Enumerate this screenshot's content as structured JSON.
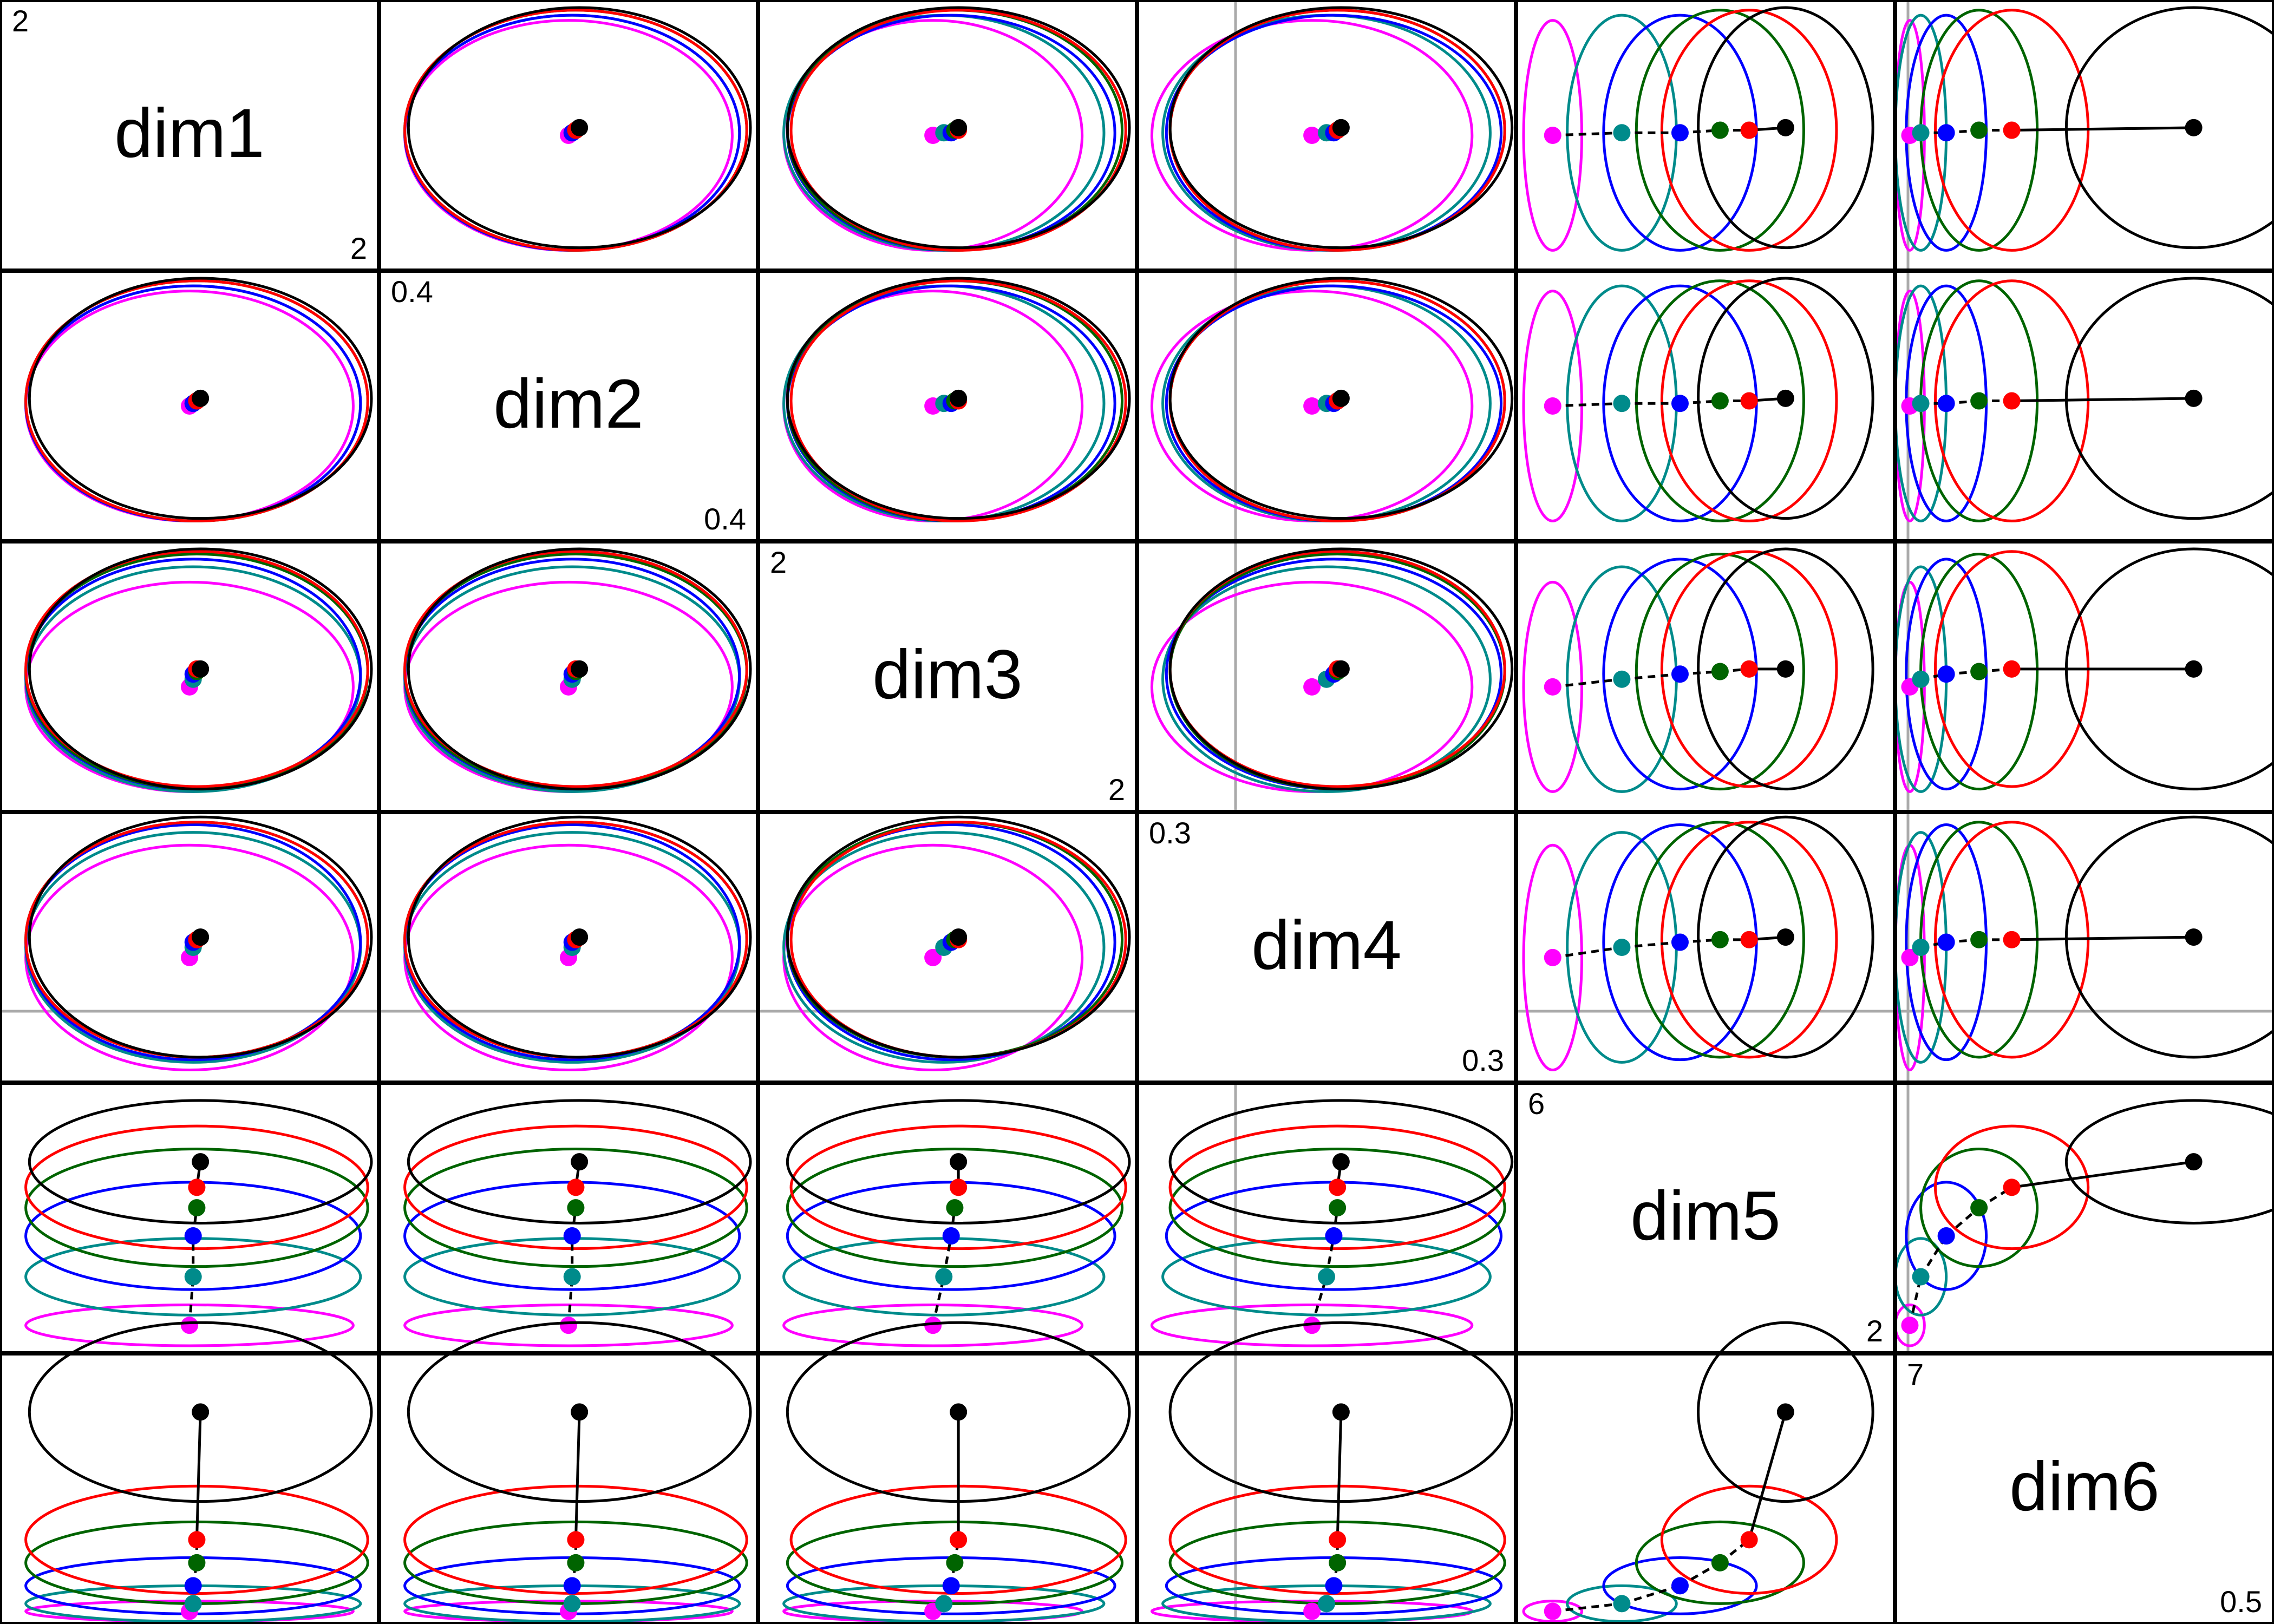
{
  "chart_data": {
    "type": "scatter",
    "dimension_labels": [
      "dim1",
      "dim2",
      "dim3",
      "dim4",
      "dim5",
      "dim6"
    ],
    "axis_limits": {
      "dim1": {
        "min": "",
        "max": "2"
      },
      "dim2": {
        "min": "",
        "max": "0.4"
      },
      "dim3": {
        "min": "",
        "max": "2"
      },
      "dim4": {
        "min": "",
        "max": "0.3"
      },
      "dim5": {
        "min": "",
        "max": "2"
      },
      "dim6": {
        "min": "",
        "max": "0.5"
      }
    },
    "diagonal_corner_labels": {
      "top_left": [
        "2",
        "0.4",
        "2",
        "0.3",
        "6",
        "7"
      ],
      "bottom_right": [
        "2",
        "0.4",
        "2",
        "0.3",
        "2",
        "0.5"
      ]
    },
    "reference_lines": {
      "x_at": 0.25,
      "y_at": 0.25
    },
    "group_colors": [
      "#ff00ff",
      "#008b8b",
      "#0000ff",
      "#006400",
      "#ff0000",
      "#000000"
    ],
    "groups": [
      {
        "color": "#ff00ff",
        "means": [
          0.5,
          0.5,
          0.46,
          0.46,
          0.08,
          0.02
        ],
        "sds": [
          0.45,
          0.45,
          0.41,
          0.44,
          0.08,
          0.04
        ]
      },
      {
        "color": "#008b8b",
        "means": [
          0.51,
          0.51,
          0.49,
          0.5,
          0.27,
          0.05
        ],
        "sds": [
          0.46,
          0.46,
          0.44,
          0.45,
          0.15,
          0.07
        ]
      },
      {
        "color": "#0000ff",
        "means": [
          0.51,
          0.51,
          0.51,
          0.52,
          0.43,
          0.12
        ],
        "sds": [
          0.46,
          0.46,
          0.45,
          0.46,
          0.21,
          0.11
        ]
      },
      {
        "color": "#006400",
        "means": [
          0.52,
          0.52,
          0.52,
          0.53,
          0.54,
          0.21
        ],
        "sds": [
          0.47,
          0.47,
          0.46,
          0.46,
          0.23,
          0.16
        ]
      },
      {
        "color": "#ff0000",
        "means": [
          0.52,
          0.52,
          0.53,
          0.53,
          0.62,
          0.3
        ],
        "sds": [
          0.47,
          0.47,
          0.46,
          0.46,
          0.24,
          0.21
        ]
      },
      {
        "color": "#000000",
        "means": [
          0.53,
          0.53,
          0.53,
          0.54,
          0.72,
          0.8
        ],
        "sds": [
          0.47,
          0.47,
          0.47,
          0.47,
          0.24,
          0.35
        ]
      }
    ],
    "grid": false,
    "legend": "none"
  }
}
